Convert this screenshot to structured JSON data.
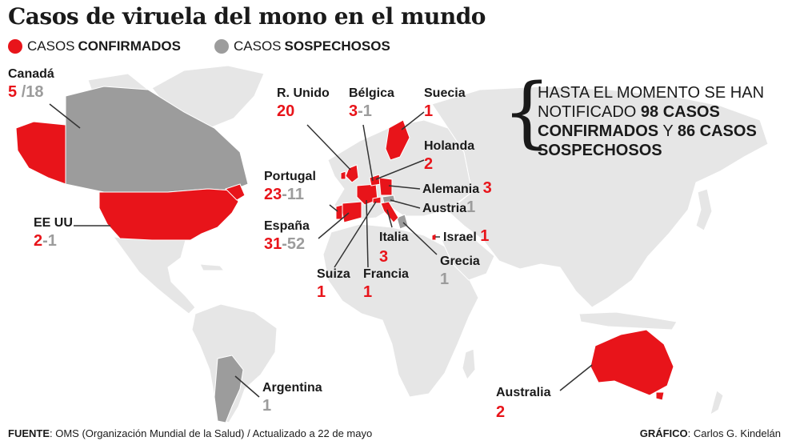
{
  "title": "Casos de viruela del mono en el mundo",
  "legend": {
    "confirmed": {
      "pre": "CASOS",
      "bold": "CONFIRMADOS",
      "color": "#e8141a"
    },
    "suspected": {
      "pre": "CASOS",
      "bold": "SOSPECHOSOS",
      "color": "#9c9c9c"
    }
  },
  "note": {
    "p1": "HASTA EL MOMENTO SE HAN NOTIFICADO",
    "b1": "98 CASOS CONFIRMADOS",
    "p2": "Y",
    "b2": "86 CASOS SOSPECHOSOS"
  },
  "countries": {
    "canada": {
      "name": "Canadá",
      "confirmed": "5",
      "suspected": "/18"
    },
    "usa": {
      "name": "EE UU",
      "confirmed": "2",
      "suspected": "-1"
    },
    "uk": {
      "name": "R. Unido",
      "confirmed": "20"
    },
    "belgium": {
      "name": "Bélgica",
      "confirmed": "3",
      "suspected": "-1"
    },
    "sweden": {
      "name": "Suecia",
      "confirmed": "1"
    },
    "netherlands": {
      "name": "Holanda",
      "confirmed": "2"
    },
    "germany": {
      "name": "Alemania",
      "confirmed": "3"
    },
    "austria": {
      "name": "Austria",
      "suspected": "1"
    },
    "portugal": {
      "name": "Portugal",
      "confirmed": "23",
      "suspected": "-11"
    },
    "spain": {
      "name": "España",
      "confirmed": "31",
      "suspected": "-52"
    },
    "italy": {
      "name": "Italia",
      "confirmed": "3"
    },
    "israel": {
      "name": "Israel",
      "confirmed": "1"
    },
    "greece": {
      "name": "Grecia",
      "suspected": "1"
    },
    "switzerland": {
      "name": "Suiza",
      "confirmed": "1"
    },
    "france": {
      "name": "Francia",
      "confirmed": "1"
    },
    "argentina": {
      "name": "Argentina",
      "suspected": "1"
    },
    "australia": {
      "name": "Australia",
      "confirmed": "2"
    }
  },
  "colors": {
    "land": "#e6e6e6",
    "confirmed": "#e8141a",
    "suspected": "#9c9c9c",
    "leader": "#333333"
  },
  "footer": {
    "source_label": "FUENTE",
    "source_text": ": OMS (Organización Mundial de la Salud) / Actualizado a 22 de mayo",
    "credit_label": "GRÁFICO",
    "credit_text": ": Carlos G. Kindelán"
  }
}
